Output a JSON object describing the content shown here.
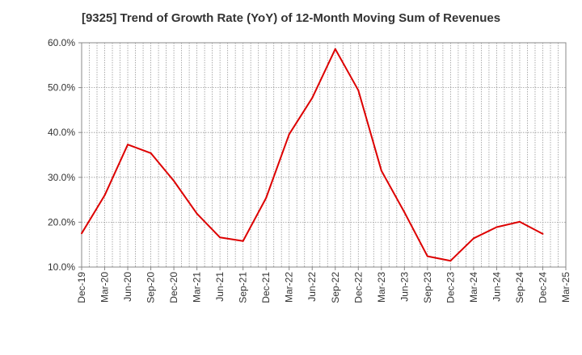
{
  "chart_data": {
    "type": "line",
    "title": "[9325]  Trend of Growth Rate (YoY) of 12-Month Moving Sum of Revenues",
    "xlabel": "",
    "ylabel": "",
    "ylim": [
      10,
      60
    ],
    "y_tick_values": [
      10,
      20,
      30,
      40,
      50,
      60
    ],
    "y_tick_labels": [
      "10.0%",
      "20.0%",
      "30.0%",
      "40.0%",
      "50.0%",
      "60.0%"
    ],
    "x_tick_labels": [
      "Dec-19",
      "Mar-20",
      "Jun-20",
      "Sep-20",
      "Dec-20",
      "Mar-21",
      "Jun-21",
      "Sep-21",
      "Dec-21",
      "Mar-22",
      "Jun-22",
      "Sep-22",
      "Dec-22",
      "Mar-23",
      "Jun-23",
      "Sep-23",
      "Dec-23",
      "Mar-24",
      "Jun-24",
      "Sep-24",
      "Dec-24",
      "Mar-25"
    ],
    "grid": true,
    "series": [
      {
        "color": "#dd0000",
        "values": [
          17.5,
          26.0,
          37.3,
          35.4,
          29.2,
          21.9,
          16.6,
          15.8,
          25.4,
          39.6,
          47.7,
          58.6,
          49.4,
          31.5,
          22.2,
          12.4,
          11.4,
          16.4,
          18.9,
          20.1,
          17.4
        ]
      }
    ]
  }
}
